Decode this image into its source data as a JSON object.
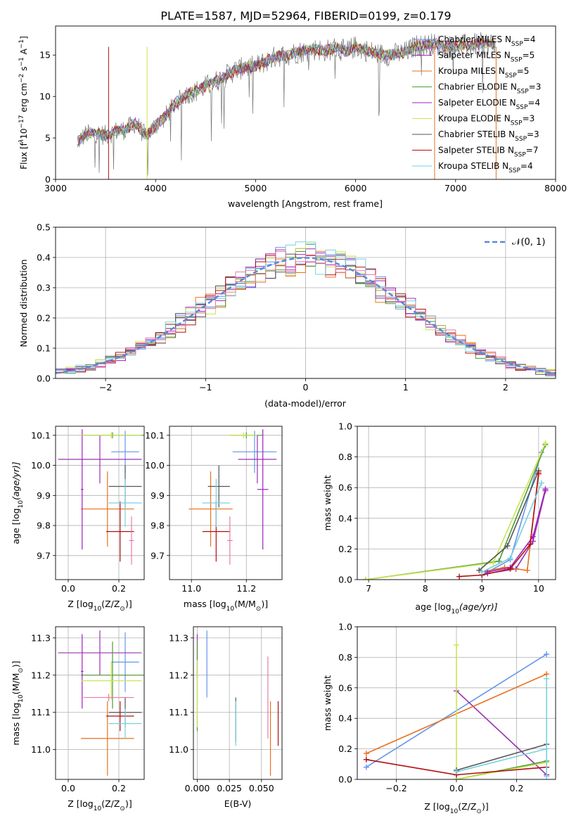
{
  "title": "PLATE=1587, MJD=52964, FIBERID=0199, z=0.179",
  "colors": {
    "Chabrier MILES": "#6495ed",
    "Salpeter MILES": "#9b30b0",
    "Kroupa MILES": "#e87020",
    "Chabrier ELODIE": "#4e9a35",
    "Salpeter ELODIE": "#a020c0",
    "Kroupa ELODIE": "#c8e650",
    "Chabrier STELIB": "#555555",
    "Salpeter STELIB": "#b01010",
    "Kroupa STELIB": "#78d0e0",
    "Normal": "#5a88dc",
    "Kroupa MILES pink": "#e87aa8"
  },
  "chart_data": [
    {
      "type": "line",
      "xlabel": "wavelength [Angstrom, rest frame]",
      "ylabel": "Flux [f$_\\lambda$10$^{-17}$ erg cm$^{-2}$ s$^{-1}$ A$^{-1}$]",
      "ylabel_parts": [
        "Flux [f",
        "λ",
        "10",
        "−17",
        " erg cm",
        "−2",
        " s",
        "−1",
        " A",
        "−1",
        "]"
      ],
      "xlim": [
        3000,
        8000
      ],
      "ylim": [
        0,
        18.5
      ],
      "xticks": [
        "3000",
        "4000",
        "5000",
        "6000",
        "7000",
        "8000"
      ],
      "yticks": [
        "0",
        "5",
        "10",
        "15"
      ],
      "grid": false,
      "legend_placement": "right",
      "legend": [
        {
          "model": "Chabrier MILES",
          "n": "4"
        },
        {
          "model": "Salpeter MILES",
          "n": "5"
        },
        {
          "model": "Kroupa MILES",
          "n": "5"
        },
        {
          "model": "Chabrier ELODIE",
          "n": "3"
        },
        {
          "model": "Salpeter ELODIE",
          "n": "4"
        },
        {
          "model": "Kroupa ELODIE",
          "n": "3"
        },
        {
          "model": "Chabrier STELIB",
          "n": "3"
        },
        {
          "model": "Salpeter STELIB",
          "n": "7"
        },
        {
          "model": "Kroupa STELIB",
          "n": "4"
        }
      ],
      "continuum": {
        "x": [
          3220,
          3300,
          3400,
          3500,
          3600,
          3700,
          3800,
          3900,
          4000,
          4100,
          4200,
          4300,
          4400,
          4500,
          4600,
          4700,
          4800,
          4900,
          5000,
          5100,
          5200,
          5300,
          5400,
          5500,
          5600,
          5700,
          5800,
          5900,
          6000,
          6100,
          6200,
          6300,
          6400,
          6500,
          6600,
          6700,
          6800,
          6900,
          7000,
          7100,
          7200,
          7300,
          7400
        ],
        "y": [
          4.5,
          5.4,
          5.6,
          5.3,
          5.8,
          6.0,
          6.8,
          5.2,
          6.5,
          7.6,
          9.2,
          10.2,
          10.6,
          11.2,
          11.8,
          12.5,
          13.2,
          13.5,
          13.6,
          14.2,
          14.8,
          15.0,
          15.3,
          15.5,
          15.7,
          15.5,
          15.9,
          15.4,
          16.0,
          15.6,
          15.2,
          15.0,
          15.1,
          15.3,
          16.1,
          16.2,
          16.3,
          16.0,
          16.1,
          16.2,
          16.3,
          16.4,
          16.3
        ]
      }
    },
    {
      "type": "histogram",
      "xlabel": "(data-model)/error",
      "ylabel": "Normed distribution",
      "xlim": [
        -2.5,
        2.5
      ],
      "ylim": [
        0,
        0.5
      ],
      "xticks": [
        "−2",
        "−1",
        "0",
        "1",
        "2"
      ],
      "yticks": [
        "0.0",
        "0.1",
        "0.2",
        "0.3",
        "0.4",
        "0.5"
      ],
      "grid": true,
      "legend_placement": "top-right",
      "legend": [
        {
          "label": "𝒩(0, 1)"
        }
      ],
      "bin_width": 0.1
    },
    {
      "type": "scatter",
      "xlabel_parts": [
        "Z [log",
        "10",
        "(Z/Z",
        "⊙",
        ")]"
      ],
      "ylabel_parts": [
        "age  [log",
        "10",
        "(age/yr)]"
      ],
      "xlim": [
        -0.05,
        0.3
      ],
      "ylim": [
        9.62,
        10.13
      ],
      "xticks": [
        "0.0",
        "0.2"
      ],
      "yticks": [
        "9.7",
        "9.8",
        "9.9",
        "10.0",
        "10.1"
      ],
      "grid": true,
      "points": [
        {
          "series": "Chabrier MILES",
          "x": 0.225,
          "xerr": 0.055,
          "y": 10.045,
          "yerr": 0.07
        },
        {
          "series": "Salpeter MILES",
          "x": 0.125,
          "xerr": 0.165,
          "y": 10.02,
          "yerr": 0.08
        },
        {
          "series": "Kroupa MILES",
          "x": 0.155,
          "xerr": 0.105,
          "y": 9.855,
          "yerr": 0.125
        },
        {
          "series": "Chabrier ELODIE",
          "x": 0.175,
          "xerr": 0.125,
          "y": 10.1,
          "yerr": 0.01
        },
        {
          "series": "Salpeter ELODIE",
          "x": 0.055,
          "xerr": 0.005,
          "y": 9.92,
          "yerr": 0.2
        },
        {
          "series": "Kroupa ELODIE",
          "x": 0.17,
          "xerr": 0.12,
          "y": 10.1,
          "yerr": 0.01
        },
        {
          "series": "Chabrier STELIB",
          "x": 0.225,
          "xerr": 0.065,
          "y": 9.93,
          "yerr": 0.07
        },
        {
          "series": "Salpeter STELIB",
          "x": 0.205,
          "xerr": 0.055,
          "y": 9.78,
          "yerr": 0.1
        },
        {
          "series": "Kroupa STELIB",
          "x": 0.225,
          "xerr": 0.065,
          "y": 9.875,
          "yerr": 0.08
        },
        {
          "series": "Kroupa MILES pink",
          "x": 0.25,
          "xerr": 0.01,
          "y": 9.75,
          "yerr": 0.08
        }
      ]
    },
    {
      "type": "scatter",
      "xlabel_parts": [
        "mass [log",
        "10",
        "(M/M",
        "⊙",
        ")]"
      ],
      "ylabel": "",
      "xlim": [
        10.92,
        11.33
      ],
      "ylim": [
        9.62,
        10.13
      ],
      "xticks": [
        "11.0",
        "11.2"
      ],
      "yticks": [
        "9.7",
        "9.8",
        "9.9",
        "10.0",
        "10.1"
      ],
      "grid": true,
      "points": [
        {
          "series": "Chabrier MILES",
          "x": 11.23,
          "xerr": 0.08,
          "y": 10.045,
          "yerr": 0.07
        },
        {
          "series": "Salpeter MILES",
          "x": 11.24,
          "xerr": 0.07,
          "y": 10.02,
          "yerr": 0.08
        },
        {
          "series": "Kroupa MILES",
          "x": 11.07,
          "xerr": 0.08,
          "y": 9.855,
          "yerr": 0.125
        },
        {
          "series": "Chabrier ELODIE",
          "x": 11.2,
          "xerr": 0.06,
          "y": 10.1,
          "yerr": 0.01
        },
        {
          "series": "Salpeter ELODIE",
          "x": 11.26,
          "xerr": 0.02,
          "y": 9.92,
          "yerr": 0.2
        },
        {
          "series": "Kroupa ELODIE",
          "x": 11.19,
          "xerr": 0.05,
          "y": 10.1,
          "yerr": 0.01
        },
        {
          "series": "Chabrier STELIB",
          "x": 11.1,
          "xerr": 0.04,
          "y": 9.93,
          "yerr": 0.07
        },
        {
          "series": "Salpeter STELIB",
          "x": 11.09,
          "xerr": 0.05,
          "y": 9.78,
          "yerr": 0.1
        },
        {
          "series": "Kroupa STELIB",
          "x": 11.09,
          "xerr": 0.05,
          "y": 9.875,
          "yerr": 0.08
        },
        {
          "series": "Kroupa MILES pink",
          "x": 11.14,
          "xerr": 0.01,
          "y": 9.75,
          "yerr": 0.08
        }
      ]
    },
    {
      "type": "line",
      "xlabel_parts": [
        "age  [log",
        "10",
        "(age/yr)]"
      ],
      "ylabel": "mass weight",
      "xlim": [
        6.8,
        10.3
      ],
      "ylim": [
        0,
        1.0
      ],
      "xticks": [
        "7",
        "8",
        "9",
        "10"
      ],
      "yticks": [
        "0.0",
        "0.2",
        "0.4",
        "0.6",
        "0.8",
        "1.0"
      ],
      "grid": true,
      "series": [
        {
          "name": "Chabrier MILES",
          "x": [
            9.0,
            9.5,
            10.05
          ],
          "y": [
            0.03,
            0.13,
            0.83
          ]
        },
        {
          "name": "Salpeter MILES",
          "x": [
            9.1,
            9.6,
            9.9,
            10.12
          ],
          "y": [
            0.04,
            0.07,
            0.25,
            0.58
          ]
        },
        {
          "name": "Kroupa MILES",
          "x": [
            9.0,
            9.4,
            9.8,
            10.0
          ],
          "y": [
            0.05,
            0.08,
            0.06,
            0.7
          ]
        },
        {
          "name": "Chabrier ELODIE",
          "x": [
            6.95,
            9.3,
            10.12
          ],
          "y": [
            0.0,
            0.12,
            0.88
          ]
        },
        {
          "name": "Salpeter ELODIE",
          "x": [
            9.1,
            9.5,
            9.9,
            10.12
          ],
          "y": [
            0.05,
            0.08,
            0.28,
            0.59
          ]
        },
        {
          "name": "Kroupa ELODIE",
          "x": [
            6.95,
            9.2,
            10.12
          ],
          "y": [
            0.0,
            0.11,
            0.89
          ]
        },
        {
          "name": "Chabrier STELIB",
          "x": [
            8.95,
            9.45,
            10.0
          ],
          "y": [
            0.06,
            0.22,
            0.71
          ]
        },
        {
          "name": "Salpeter STELIB",
          "x": [
            8.6,
            9.0,
            9.5,
            9.85,
            10.0
          ],
          "y": [
            0.02,
            0.03,
            0.07,
            0.23,
            0.69
          ]
        },
        {
          "name": "Kroupa STELIB",
          "x": [
            9.0,
            9.5,
            10.05
          ],
          "y": [
            0.05,
            0.14,
            0.63
          ]
        }
      ]
    },
    {
      "type": "scatter",
      "xlabel_parts": [
        "Z [log",
        "10",
        "(Z/Z",
        "⊙",
        ")]"
      ],
      "ylabel_parts": [
        "mass [log",
        "10",
        "(M/M",
        "⊙",
        ")]"
      ],
      "xlim": [
        -0.05,
        0.3
      ],
      "ylim": [
        10.92,
        11.33
      ],
      "xticks": [
        "0.0",
        "0.2"
      ],
      "yticks": [
        "11.0",
        "11.1",
        "11.2",
        "11.3"
      ],
      "grid": true,
      "points": [
        {
          "series": "Chabrier MILES",
          "x": 0.225,
          "xerr": 0.055,
          "y": 11.235,
          "yerr": 0.08
        },
        {
          "series": "Salpeter MILES",
          "x": 0.125,
          "xerr": 0.165,
          "y": 11.26,
          "yerr": 0.06
        },
        {
          "series": "Kroupa MILES",
          "x": 0.155,
          "xerr": 0.105,
          "y": 11.03,
          "yerr": 0.1
        },
        {
          "series": "Chabrier ELODIE",
          "x": 0.175,
          "xerr": 0.125,
          "y": 11.2,
          "yerr": 0.09
        },
        {
          "series": "Salpeter ELODIE",
          "x": 0.055,
          "xerr": 0.005,
          "y": 11.21,
          "yerr": 0.1
        },
        {
          "series": "Kroupa ELODIE",
          "x": 0.17,
          "xerr": 0.12,
          "y": 11.185,
          "yerr": 0.05
        },
        {
          "series": "Chabrier STELIB",
          "x": 0.225,
          "xerr": 0.065,
          "y": 11.1,
          "yerr": 0.04
        },
        {
          "series": "Salpeter STELIB",
          "x": 0.205,
          "xerr": 0.055,
          "y": 11.09,
          "yerr": 0.04
        },
        {
          "series": "Kroupa STELIB",
          "x": 0.225,
          "xerr": 0.065,
          "y": 11.07,
          "yerr": 0.04
        },
        {
          "series": "Kroupa MILES pink",
          "x": 0.16,
          "xerr": 0.1,
          "y": 11.14,
          "yerr": 0.01
        }
      ]
    },
    {
      "type": "scatter",
      "xlabel": "E(B-V)",
      "ylabel": "",
      "xlim": [
        -0.003,
        0.066
      ],
      "ylim": [
        10.92,
        11.33
      ],
      "xticks": [
        "0.000",
        "0.025",
        "0.050"
      ],
      "yticks": [
        "11.0",
        "11.1",
        "11.2",
        "11.3"
      ],
      "grid": true,
      "points": [
        {
          "series": "Chabrier MILES",
          "x": 0.0075,
          "xerr": 0,
          "y": 11.23,
          "yerr": 0.09
        },
        {
          "series": "Salpeter MILES",
          "x": 0.0,
          "xerr": 0,
          "y": 11.25,
          "yerr": 0.06
        },
        {
          "series": "Kroupa MILES",
          "x": 0.057,
          "xerr": 0,
          "y": 11.03,
          "yerr": 0.1
        },
        {
          "series": "Chabrier ELODIE",
          "x": 0.0,
          "xerr": 0,
          "y": 11.17,
          "yerr": 0.12
        },
        {
          "series": "Kroupa ELODIE",
          "x": 0.0,
          "xerr": 0,
          "y": 11.15,
          "yerr": 0.09
        },
        {
          "series": "Chabrier STELIB",
          "x": 0.03,
          "xerr": 0,
          "y": 11.08,
          "yerr": 0.06
        },
        {
          "series": "Salpeter STELIB",
          "x": 0.063,
          "xerr": 0,
          "y": 11.07,
          "yerr": 0.06
        },
        {
          "series": "Kroupa STELIB",
          "x": 0.03,
          "xerr": 0,
          "y": 11.07,
          "yerr": 0.06
        },
        {
          "series": "Kroupa MILES pink",
          "x": 0.055,
          "xerr": 0,
          "y": 11.14,
          "yerr": 0.11
        }
      ]
    },
    {
      "type": "line",
      "xlabel_parts": [
        "Z [log",
        "10",
        "(Z/Z",
        "⊙",
        ")]"
      ],
      "ylabel": "mass weight",
      "xlim": [
        -0.33,
        0.33
      ],
      "ylim": [
        0,
        1.0
      ],
      "xticks": [
        "−0.2",
        "0.0",
        "0.2"
      ],
      "yticks": [
        "0.0",
        "0.2",
        "0.4",
        "0.6",
        "0.8",
        "1.0"
      ],
      "grid": true,
      "series": [
        {
          "name": "Chabrier MILES",
          "x": [
            -0.3,
            0.3
          ],
          "y": [
            0.08,
            0.82
          ]
        },
        {
          "name": "Salpeter MILES",
          "x": [
            0.0,
            0.3
          ],
          "y": [
            0.58,
            0.03
          ]
        },
        {
          "name": "Kroupa MILES",
          "x": [
            -0.3,
            0.3
          ],
          "y": [
            0.17,
            0.69
          ]
        },
        {
          "name": "Chabrier ELODIE",
          "x": [
            0.0,
            0.3
          ],
          "y": [
            0.0,
            0.12
          ]
        },
        {
          "name": "Kroupa ELODIE",
          "x": [
            0.0,
            0.0,
            0.3
          ],
          "y": [
            0.88,
            0.0,
            0.11
          ]
        },
        {
          "name": "Chabrier STELIB",
          "x": [
            0.0,
            0.3
          ],
          "y": [
            0.06,
            0.23
          ]
        },
        {
          "name": "Salpeter STELIB",
          "x": [
            -0.3,
            0.0,
            0.3
          ],
          "y": [
            0.13,
            0.03,
            0.08
          ]
        },
        {
          "name": "Kroupa STELIB",
          "x": [
            0.0,
            0.3
          ],
          "y": [
            0.05,
            0.2
          ]
        },
        {
          "name": "Kroupa STELIB vertical",
          "x": [
            0.3,
            0.3
          ],
          "y": [
            0.02,
            0.66
          ]
        }
      ]
    }
  ]
}
